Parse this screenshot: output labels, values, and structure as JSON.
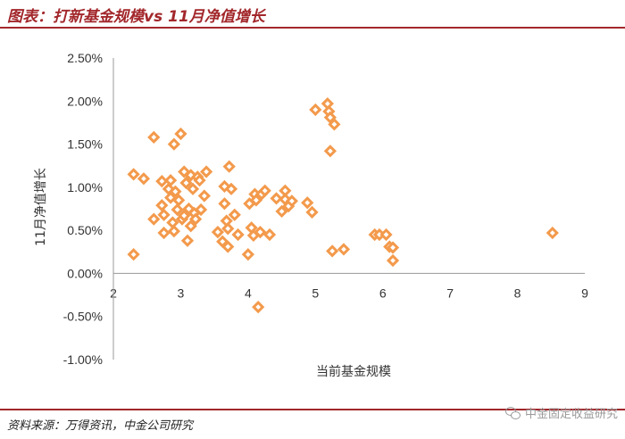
{
  "header": {
    "title": "图表：打新基金规模vs 11月净值增长"
  },
  "footer": {
    "source": "资料来源：万得资讯，中金公司研究"
  },
  "watermark": {
    "text": "中金固定收益研究",
    "icon": "wechat-icon"
  },
  "colors": {
    "accent": "#a2272b",
    "marker": "#f39a4c",
    "axis": "#999999"
  },
  "chart_data": {
    "type": "scatter",
    "xlabel": "当前基金规模",
    "ylabel": "11月净值增长",
    "xlim": [
      2,
      9
    ],
    "ylim": [
      -0.01,
      0.025
    ],
    "x_ticks": [
      2,
      3,
      4,
      5,
      6,
      7,
      8,
      9
    ],
    "y_ticks": [
      -0.01,
      -0.005,
      0,
      0.005,
      0.01,
      0.015,
      0.02,
      0.025
    ],
    "y_tick_labels": [
      "-1.00%",
      "-0.50%",
      "0.00%",
      "0.50%",
      "1.00%",
      "1.50%",
      "2.00%",
      "2.50%"
    ],
    "marker": "diamond",
    "points": [
      [
        2.3,
        0.0115
      ],
      [
        2.45,
        0.011
      ],
      [
        2.3,
        0.0022
      ],
      [
        2.6,
        0.0158
      ],
      [
        2.6,
        0.0063
      ],
      [
        2.72,
        0.0107
      ],
      [
        2.72,
        0.0079
      ],
      [
        2.75,
        0.0068
      ],
      [
        2.75,
        0.0047
      ],
      [
        2.82,
        0.0098
      ],
      [
        2.85,
        0.0108
      ],
      [
        2.85,
        0.0088
      ],
      [
        2.88,
        0.0059
      ],
      [
        2.9,
        0.015
      ],
      [
        2.9,
        0.0049
      ],
      [
        2.92,
        0.0095
      ],
      [
        2.95,
        0.0074
      ],
      [
        2.97,
        0.0085
      ],
      [
        3.0,
        0.0162
      ],
      [
        3.02,
        0.0063
      ],
      [
        3.05,
        0.0118
      ],
      [
        3.05,
        0.0067
      ],
      [
        3.08,
        0.0105
      ],
      [
        3.1,
        0.0038
      ],
      [
        3.12,
        0.0075
      ],
      [
        3.15,
        0.0114
      ],
      [
        3.15,
        0.0055
      ],
      [
        3.18,
        0.0098
      ],
      [
        3.2,
        0.007
      ],
      [
        3.22,
        0.0063
      ],
      [
        3.25,
        0.0112
      ],
      [
        3.28,
        0.0108
      ],
      [
        3.3,
        0.0074
      ],
      [
        3.35,
        0.009
      ],
      [
        3.38,
        0.0118
      ],
      [
        3.55,
        0.0048
      ],
      [
        3.62,
        0.0037
      ],
      [
        3.65,
        0.0101
      ],
      [
        3.65,
        0.0081
      ],
      [
        3.68,
        0.0061
      ],
      [
        3.7,
        0.0052
      ],
      [
        3.7,
        0.0031
      ],
      [
        3.72,
        0.0124
      ],
      [
        3.75,
        0.0098
      ],
      [
        3.8,
        0.0068
      ],
      [
        3.85,
        0.0045
      ],
      [
        4.0,
        0.0022
      ],
      [
        4.02,
        0.0081
      ],
      [
        4.05,
        0.0053
      ],
      [
        4.08,
        0.0044
      ],
      [
        4.1,
        0.0092
      ],
      [
        4.12,
        0.0085
      ],
      [
        4.15,
        -0.0039
      ],
      [
        4.18,
        0.0048
      ],
      [
        4.2,
        0.0092
      ],
      [
        4.25,
        0.0096
      ],
      [
        4.32,
        0.0045
      ],
      [
        4.42,
        0.0087
      ],
      [
        4.5,
        0.0072
      ],
      [
        4.55,
        0.0096
      ],
      [
        4.55,
        0.0086
      ],
      [
        4.6,
        0.0078
      ],
      [
        4.65,
        0.0084
      ],
      [
        4.88,
        0.0082
      ],
      [
        4.95,
        0.0071
      ],
      [
        5.0,
        0.019
      ],
      [
        5.18,
        0.0197
      ],
      [
        5.2,
        0.0188
      ],
      [
        5.22,
        0.0181
      ],
      [
        5.22,
        0.0142
      ],
      [
        5.28,
        0.0173
      ],
      [
        5.25,
        0.0026
      ],
      [
        5.42,
        0.0028
      ],
      [
        5.88,
        0.0045
      ],
      [
        5.95,
        0.0045
      ],
      [
        6.05,
        0.0045
      ],
      [
        6.1,
        0.0031
      ],
      [
        6.15,
        0.003
      ],
      [
        6.15,
        0.0015
      ],
      [
        8.52,
        0.0047
      ]
    ]
  }
}
